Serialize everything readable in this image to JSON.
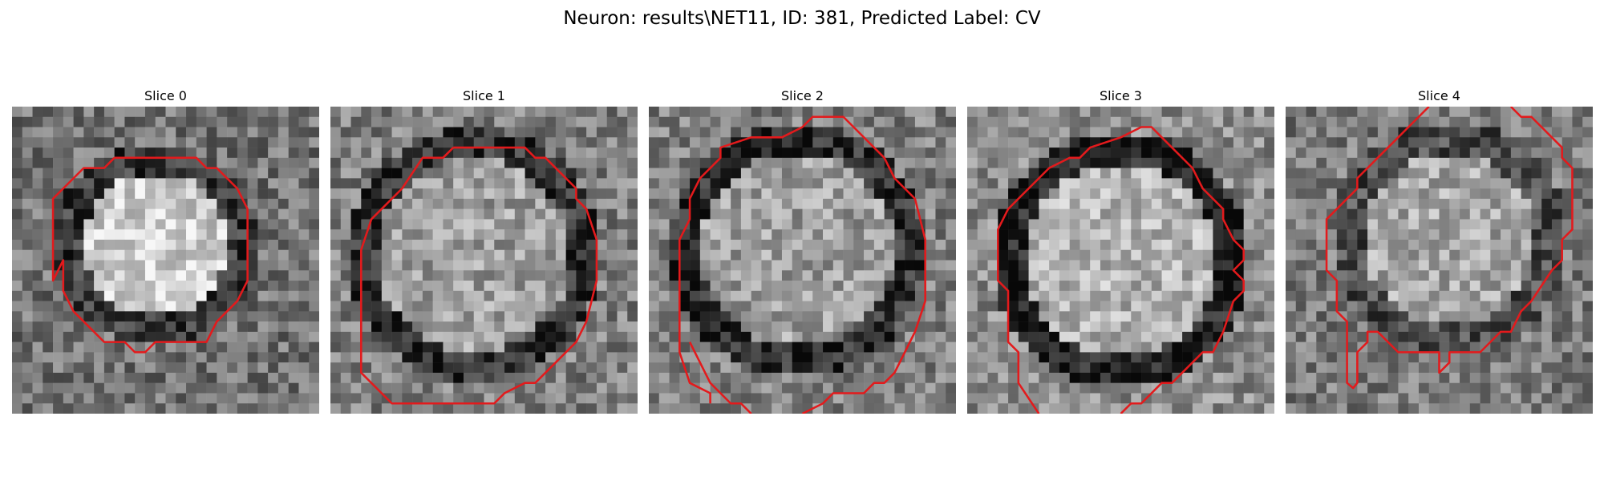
{
  "figure": {
    "title": "Neuron: results\\NET11, ID: 381, Predicted Label: CV"
  },
  "colors": {
    "background": "#ffffff",
    "contour": "#e31a1c",
    "text": "#000000"
  },
  "panels": [
    {
      "title": "Slice 0"
    },
    {
      "title": "Slice 1"
    },
    {
      "title": "Slice 2"
    },
    {
      "title": "Slice 3"
    },
    {
      "title": "Slice 4"
    }
  ]
}
